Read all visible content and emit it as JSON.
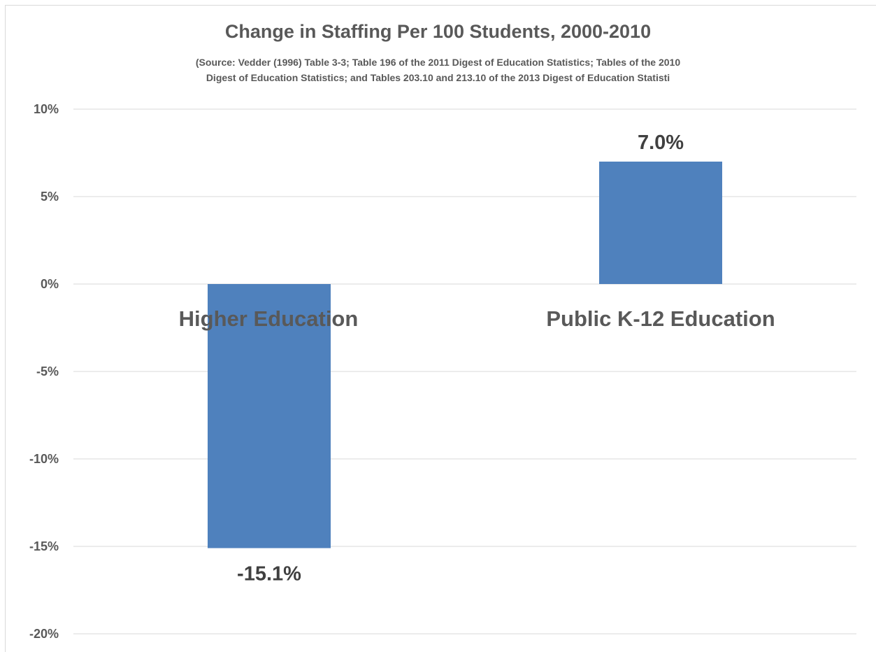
{
  "chart_data": {
    "type": "bar",
    "title": "Change in Staffing Per 100 Students, 2000-2010",
    "subtitle_lines": [
      "(Source: Vedder (1996) Table 3-3; Table 196 of the 2011 Digest of Education Statistics; Tables of the 2010",
      "Digest of Education Statistics; and Tables 203.10 and 213.10 of the 2013 Digest of Education Statisti"
    ],
    "categories": [
      "Higher Education",
      "Public K-12 Education"
    ],
    "values": [
      -15.1,
      7.0
    ],
    "data_labels": [
      "-15.1%",
      "7.0%"
    ],
    "ylim": [
      -20,
      10
    ],
    "yticks": [
      10,
      5,
      0,
      -5,
      -10,
      -15,
      -20
    ],
    "ytick_labels": [
      "10%",
      "5%",
      "0%",
      "-5%",
      "-10%",
      "-15%",
      "-20%"
    ],
    "grid": true,
    "bar_color": "#4f81bd",
    "text_color": "#595959",
    "grid_color": "#d9d9d9"
  }
}
